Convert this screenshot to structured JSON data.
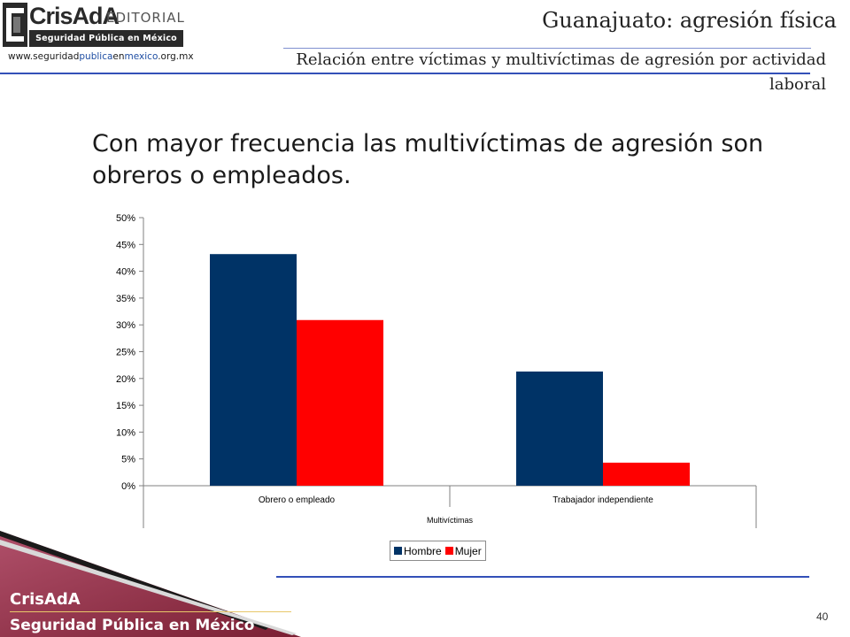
{
  "header": {
    "logo_name": "CrisAdA",
    "logo_suffix": "EDITORIAL",
    "logo_tagline": "Seguridad Pública en México",
    "url_parts": [
      "www.seguridad",
      "publica",
      "en",
      "mexico",
      ".org.mx"
    ],
    "title": "Guanajuato: agresión física",
    "subtitle": "Relación entre víctimas y multivíctimas de agresión por actividad laboral"
  },
  "lead_text": "Con mayor frecuencia las multivíctimas de agresión son obreros o empleados.",
  "chart_data": {
    "type": "bar",
    "categories": [
      "Obrero o empleado",
      "Trabajador independiente"
    ],
    "group_label": "Multivíctimas",
    "series": [
      {
        "name": "Hombre",
        "color": "#003366",
        "values": [
          43.2,
          21.3
        ]
      },
      {
        "name": "Mujer",
        "color": "#ff0000",
        "values": [
          30.9,
          4.3
        ]
      }
    ],
    "ylim": [
      0,
      50
    ],
    "yticks": [
      0,
      5,
      10,
      15,
      20,
      25,
      30,
      35,
      40,
      45,
      50
    ],
    "ytick_labels": [
      "0%",
      "5%",
      "10%",
      "15%",
      "20%",
      "25%",
      "30%",
      "35%",
      "40%",
      "45%",
      "50%"
    ],
    "grid": false,
    "legend_position": "bottom"
  },
  "footer": {
    "brand": "CrisAdA",
    "tagline": "Seguridad Pública en México",
    "page_number": "40"
  },
  "colors": {
    "accent_rule": "#3350b8",
    "footer_maroon": "#8e2a3f"
  }
}
